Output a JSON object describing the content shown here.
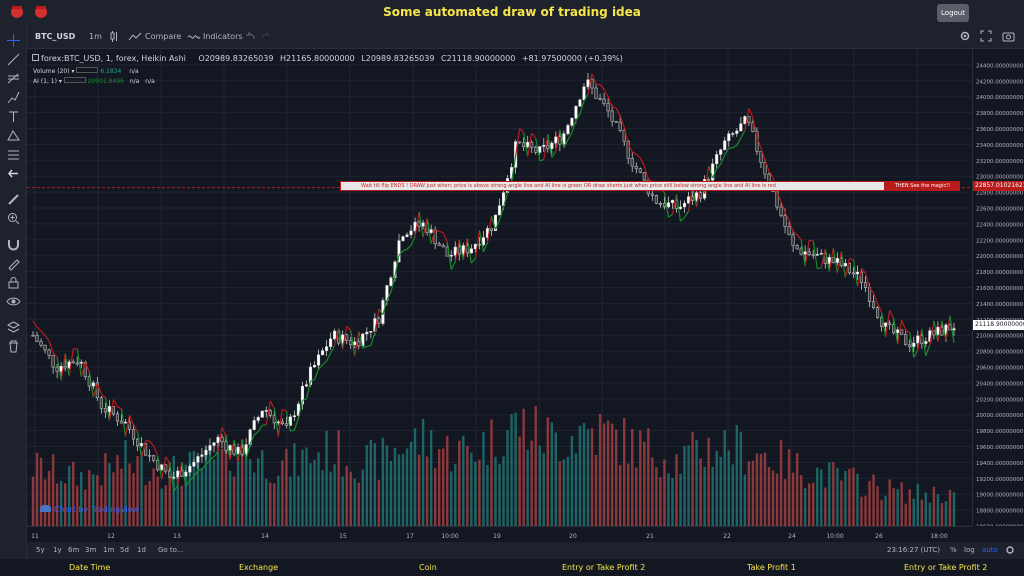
{
  "app": {
    "title": "Some automated draw of trading idea",
    "logout_label": "Logout"
  },
  "toolbar": {
    "symbol": "BTC_USD",
    "interval": "1m",
    "compare_label": "Compare",
    "indicators_label": "Indicators"
  },
  "legend": {
    "main": "forex:BTC_USD, 1, forex, Heikin Ashi",
    "open": "O20989.83265039",
    "high": "H21165.80000000",
    "low": "L20989.83265039",
    "close": "C21118.90000000",
    "change": "+81.97500000 (+0.39%)",
    "volume_name": "Volume (20)",
    "volume_value": "6.1834",
    "volume_na": "n/a",
    "ai_name": "AI (1, 1)",
    "ai_value": "20901.8496",
    "ai_na1": "n/a",
    "ai_na2": "n/a"
  },
  "banner": {
    "part1": "Wait till flip ENDS  !   DRAW just when:  price is above strong angle line and AI line is green         OR         draw shorts just when price still below strong angle line and AI line is red",
    "part2": "THEN See the magic!!"
  },
  "price_tags": {
    "line_price": "22857.01021621",
    "last_price": "21118.90000000"
  },
  "price_scale": [
    "24400.00000000",
    "24200.00000000",
    "24000.00000000",
    "23800.00000000",
    "23600.00000000",
    "23400.00000000",
    "23200.00000000",
    "23000.00000000",
    "22800.00000000",
    "22600.00000000",
    "22400.00000000",
    "22200.00000000",
    "22000.00000000",
    "21800.00000000",
    "21600.00000000",
    "21400.00000000",
    "21200.00000000",
    "21000.00000000",
    "20800.00000000",
    "20600.00000000",
    "20400.00000000",
    "20200.00000000",
    "20000.00000000",
    "19800.00000000",
    "19600.00000000",
    "19400.00000000",
    "19200.00000000",
    "19000.00000000",
    "18800.00000000",
    "18600.00000000"
  ],
  "time_scale": [
    "11",
    "12",
    "13",
    "14",
    "15",
    "17",
    "10:00",
    "19",
    "20",
    "21",
    "22",
    "24",
    "10:00",
    "26",
    "18:00"
  ],
  "watermark": "Chart by TradingView",
  "bottombar": {
    "ranges": [
      "5y",
      "1y",
      "6m",
      "3m",
      "1m",
      "5d",
      "1d"
    ],
    "goto": "Go to...",
    "time": "23:16:27 (UTC)",
    "percent": "%",
    "log": "log",
    "auto": "auto"
  },
  "footer": [
    "Date Time",
    "Exchange",
    "Coin",
    "Entry or Take Profit 2",
    "Take Profit 1",
    "Entry or Take Profit 2"
  ],
  "colors": {
    "up": "#26a69a",
    "down": "#ef5350",
    "ai_green": "#1b8a2b",
    "ai_red": "#b71c1c",
    "accent": "#2962ff",
    "title": "#f7e64a"
  },
  "chart_data": {
    "type": "candlestick",
    "ylim": [
      18600,
      24600
    ],
    "close_path": [
      21000,
      20600,
      20700,
      20100,
      19900,
      19500,
      19200,
      19400,
      19700,
      19500,
      20100,
      19800,
      20500,
      21000,
      20900,
      21200,
      22300,
      22400,
      22000,
      22100,
      22400,
      23400,
      23300,
      23500,
      24200,
      23800,
      23200,
      22700,
      22600,
      22800,
      23400,
      23700,
      22900,
      22100,
      22000,
      21900,
      21700,
      21100,
      20900,
      21000,
      21118.9
    ],
    "volume_path": [
      0.55,
      0.5,
      0.45,
      0.5,
      0.6,
      0.55,
      0.5,
      0.55,
      0.6,
      0.7,
      0.6,
      0.55,
      0.65,
      0.7,
      0.6,
      0.6,
      0.75,
      0.8,
      0.7,
      0.7,
      0.8,
      0.95,
      0.85,
      0.8,
      0.9,
      0.85,
      0.75,
      0.7,
      0.6,
      0.7,
      0.75,
      0.7,
      0.65,
      0.55,
      0.5,
      0.45,
      0.4,
      0.35,
      0.3,
      0.3,
      0.3
    ]
  }
}
